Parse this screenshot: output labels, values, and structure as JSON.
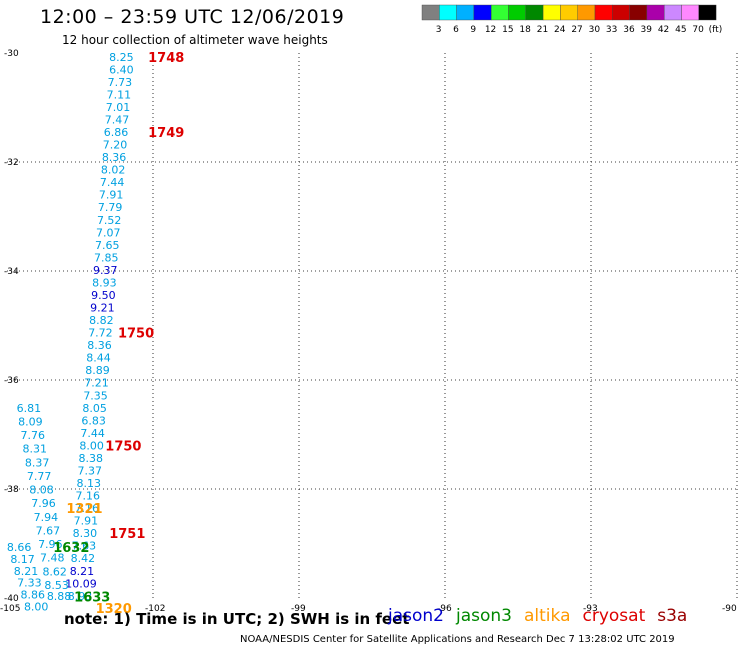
{
  "header": {
    "title": "12:00 – 23:59 UTC 12/06/2019",
    "subtitle": "12 hour collection of altimeter wave heights"
  },
  "legend": {
    "labels": [
      "3",
      "6",
      "9",
      "12",
      "15",
      "18",
      "21",
      "24",
      "27",
      "30",
      "33",
      "36",
      "39",
      "42",
      "45",
      "70",
      "(ft)"
    ],
    "colors": [
      "#808080",
      "#00ffff",
      "#00b0ff",
      "#0000ff",
      "#33ff33",
      "#00cc00",
      "#008800",
      "#ffff00",
      "#ffcc00",
      "#ff9900",
      "#ff0000",
      "#cc0000",
      "#880000",
      "#aa00aa",
      "#cc88ff",
      "#ff88ff",
      "#000000"
    ]
  },
  "footer": {
    "note": "note:  1) Time is in UTC;  2) SWH is in feet",
    "credit": "NOAA/NESDIS Center for Satellite Applications and Research    Dec  7 13:28:02 UTC 2019"
  },
  "satellites": [
    {
      "name": "jason2",
      "color": "#0000cc"
    },
    {
      "name": "jason3",
      "color": "#008800"
    },
    {
      "name": "altika",
      "color": "#ff9900"
    },
    {
      "name": "cryosat",
      "color": "#dd0000"
    },
    {
      "name": "s3a",
      "color": "#990000"
    }
  ],
  "chart_data": {
    "type": "scatter",
    "title": "12:00 – 23:59 UTC 12/06/2019",
    "xlim": [
      -105,
      -90
    ],
    "ylim": [
      -40,
      -30
    ],
    "xticks": [
      -105,
      -102,
      -99,
      -96,
      -93,
      -90
    ],
    "yticks": [
      -30,
      -32,
      -34,
      -36,
      -38,
      -40
    ],
    "grid": true,
    "series": [
      {
        "name": "cryosat",
        "color": "#00a0e0",
        "points": [
          {
            "x": -102.65,
            "y": -30.07,
            "label": "8.25"
          },
          {
            "x": -102.65,
            "y": -30.3,
            "label": "6.40"
          },
          {
            "x": -102.68,
            "y": -30.53,
            "label": "7.73"
          },
          {
            "x": -102.7,
            "y": -30.76,
            "label": "7.11"
          },
          {
            "x": -102.72,
            "y": -30.99,
            "label": "7.01"
          },
          {
            "x": -102.74,
            "y": -31.22,
            "label": "7.47"
          },
          {
            "x": -102.76,
            "y": -31.45,
            "label": "6.86"
          },
          {
            "x": -102.78,
            "y": -31.68,
            "label": "7.20"
          },
          {
            "x": -102.8,
            "y": -31.91,
            "label": "8.36"
          },
          {
            "x": -102.82,
            "y": -32.14,
            "label": "8.02"
          },
          {
            "x": -102.84,
            "y": -32.37,
            "label": "7.44"
          },
          {
            "x": -102.86,
            "y": -32.6,
            "label": "7.91"
          },
          {
            "x": -102.88,
            "y": -32.83,
            "label": "7.79"
          },
          {
            "x": -102.9,
            "y": -33.06,
            "label": "7.52"
          },
          {
            "x": -102.92,
            "y": -33.29,
            "label": "7.07"
          },
          {
            "x": -102.94,
            "y": -33.52,
            "label": "7.65"
          },
          {
            "x": -102.96,
            "y": -33.75,
            "label": "7.85"
          },
          {
            "x": -102.98,
            "y": -33.98,
            "label": "9.37",
            "color": "#0000cc"
          },
          {
            "x": -103.0,
            "y": -34.21,
            "label": "8.93"
          },
          {
            "x": -103.02,
            "y": -34.44,
            "label": "9.50",
            "color": "#0000cc"
          },
          {
            "x": -103.04,
            "y": -34.67,
            "label": "9.21",
            "color": "#0000cc"
          },
          {
            "x": -103.06,
            "y": -34.9,
            "label": "8.82"
          },
          {
            "x": -103.08,
            "y": -35.13,
            "label": "7.72"
          },
          {
            "x": -103.1,
            "y": -35.36,
            "label": "8.36"
          },
          {
            "x": -103.12,
            "y": -35.59,
            "label": "8.44"
          },
          {
            "x": -103.14,
            "y": -35.82,
            "label": "8.89"
          },
          {
            "x": -103.16,
            "y": -36.05,
            "label": "7.21"
          },
          {
            "x": -103.18,
            "y": -36.28,
            "label": "7.35"
          },
          {
            "x": -103.2,
            "y": -36.51,
            "label": "8.05"
          },
          {
            "x": -103.22,
            "y": -36.74,
            "label": "6.83"
          },
          {
            "x": -103.24,
            "y": -36.97,
            "label": "7.44"
          },
          {
            "x": -103.26,
            "y": -37.2,
            "label": "8.00"
          },
          {
            "x": -103.28,
            "y": -37.43,
            "label": "8.38"
          },
          {
            "x": -103.3,
            "y": -37.66,
            "label": "7.37"
          },
          {
            "x": -103.32,
            "y": -37.89,
            "label": "8.13"
          },
          {
            "x": -103.34,
            "y": -38.12,
            "label": "7.16"
          },
          {
            "x": -103.36,
            "y": -38.35,
            "label": "7.16"
          },
          {
            "x": -103.38,
            "y": -38.58,
            "label": "7.91"
          },
          {
            "x": -103.4,
            "y": -38.81,
            "label": "8.30"
          },
          {
            "x": -103.42,
            "y": -39.04,
            "label": "7.63"
          },
          {
            "x": -103.44,
            "y": -39.27,
            "label": "8.42"
          },
          {
            "x": -103.46,
            "y": -39.5,
            "label": "8.21",
            "color": "#0000cc"
          },
          {
            "x": -103.48,
            "y": -39.73,
            "label": "10.09",
            "color": "#0000cc"
          },
          {
            "x": -103.5,
            "y": -39.96,
            "label": "8.93"
          }
        ]
      },
      {
        "name": "altika",
        "color": "#00a0e0",
        "points": [
          {
            "x": -104.55,
            "y": -36.51,
            "label": "6.81"
          },
          {
            "x": -104.52,
            "y": -36.76,
            "label": "8.09"
          },
          {
            "x": -104.47,
            "y": -37.01,
            "label": "7.76"
          },
          {
            "x": -104.43,
            "y": -37.26,
            "label": "8.31"
          },
          {
            "x": -104.38,
            "y": -37.51,
            "label": "8.37"
          },
          {
            "x": -104.34,
            "y": -37.76,
            "label": "7.77"
          },
          {
            "x": -104.29,
            "y": -38.01,
            "label": "8.08"
          },
          {
            "x": -104.25,
            "y": -38.26,
            "label": "7.96"
          },
          {
            "x": -104.2,
            "y": -38.51,
            "label": "7.94"
          },
          {
            "x": -104.16,
            "y": -38.76,
            "label": "7.67"
          },
          {
            "x": -104.11,
            "y": -39.01,
            "label": "7.96"
          },
          {
            "x": -104.07,
            "y": -39.26,
            "label": "7.48"
          },
          {
            "x": -104.02,
            "y": -39.51,
            "label": "8.62"
          },
          {
            "x": -103.98,
            "y": -39.76,
            "label": "8.53"
          },
          {
            "x": -103.93,
            "y": -39.96,
            "label": "8.88"
          }
        ]
      },
      {
        "name": "jason3",
        "color": "#00a0e0",
        "points": [
          {
            "x": -104.75,
            "y": -39.06,
            "label": "8.66"
          },
          {
            "x": -104.68,
            "y": -39.28,
            "label": "8.17"
          },
          {
            "x": -104.61,
            "y": -39.5,
            "label": "8.21"
          },
          {
            "x": -104.54,
            "y": -39.72,
            "label": "7.33"
          },
          {
            "x": -104.47,
            "y": -39.94,
            "label": "8.86"
          },
          {
            "x": -104.4,
            "y": -40.16,
            "label": "8.00"
          }
        ]
      }
    ],
    "time_labels": [
      {
        "x": -102.1,
        "y": -30.07,
        "text": "1748",
        "color": "#dd0000"
      },
      {
        "x": -102.1,
        "y": -31.45,
        "text": "1749",
        "color": "#dd0000"
      },
      {
        "x": -102.72,
        "y": -35.13,
        "text": "1750",
        "color": "#dd0000"
      },
      {
        "x": -102.98,
        "y": -37.2,
        "text": "1750",
        "color": "#dd0000"
      },
      {
        "x": -102.9,
        "y": -38.81,
        "text": "1751",
        "color": "#dd0000"
      },
      {
        "x": -103.78,
        "y": -38.35,
        "text": "1321",
        "color": "#ff9900"
      },
      {
        "x": -104.05,
        "y": -39.06,
        "text": "1632",
        "color": "#008800"
      },
      {
        "x": -103.62,
        "y": -39.97,
        "text": "1633",
        "color": "#008800"
      },
      {
        "x": -103.18,
        "y": -40.18,
        "text": "1320",
        "color": "#ff9900"
      }
    ]
  }
}
